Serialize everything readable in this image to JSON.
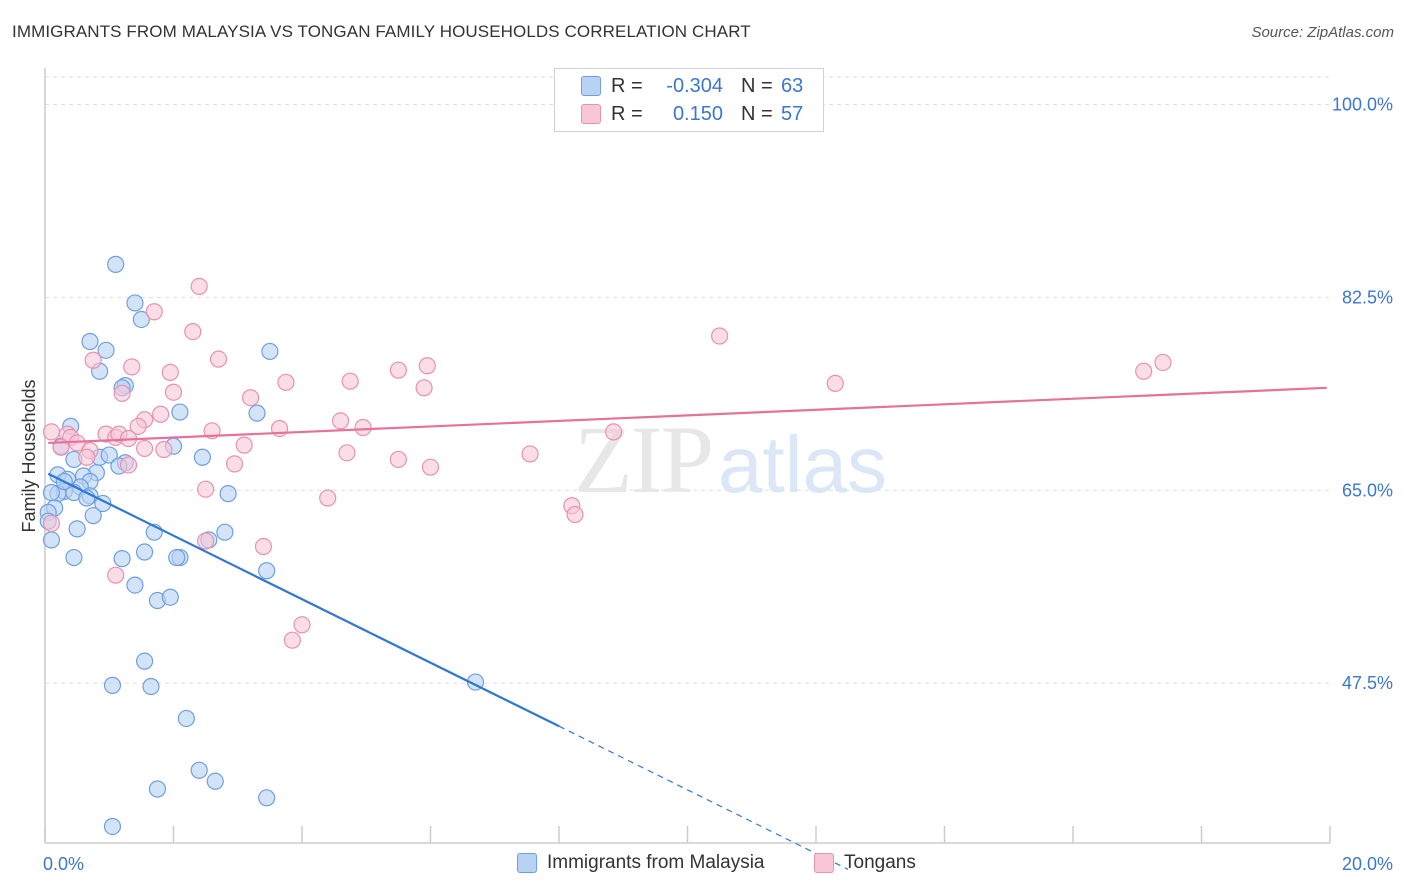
{
  "title": "IMMIGRANTS FROM MALAYSIA VS TONGAN FAMILY HOUSEHOLDS CORRELATION CHART",
  "source": "Source: ZipAtlas.com",
  "colors": {
    "blue_fill": "#b8d2f4",
    "blue_stroke": "#6f9fe0",
    "blue_line": "#2e78d2",
    "pink_fill": "#f7c6d7",
    "pink_stroke": "#e892b0",
    "pink_line": "#e5729b",
    "tick_text": "#3b77d1",
    "grid": "#dddddd"
  },
  "legend_top": {
    "rows": [
      {
        "r_label": "R =",
        "r_value": "-0.304",
        "n_label": "N =",
        "n_value": "63",
        "series": "blue"
      },
      {
        "r_label": "R =",
        "r_value": "0.150",
        "n_label": "N =",
        "n_value": "57",
        "series": "pink"
      }
    ]
  },
  "legend_bottom": {
    "items": [
      {
        "label": "Immigrants from Malaysia",
        "series": "blue"
      },
      {
        "label": "Tongans",
        "series": "pink"
      }
    ]
  },
  "chart_data": {
    "type": "scatter",
    "ylabel": "Family Households",
    "xlabel": "",
    "xlim": [
      0,
      20
    ],
    "ylim": [
      33,
      102.5
    ],
    "x_tick_labels": [
      {
        "value": 0,
        "label": "0.0%"
      },
      {
        "value": 20,
        "label": "20.0%"
      }
    ],
    "y_tick_labels": [
      {
        "value": 100,
        "label": "100.0%"
      },
      {
        "value": 82.5,
        "label": "82.5%"
      },
      {
        "value": 65,
        "label": "65.0%"
      },
      {
        "value": 47.5,
        "label": "47.5%"
      }
    ],
    "watermark": {
      "part1": "ZIP",
      "part2": "atlas"
    },
    "series": [
      {
        "name": "Immigrants from Malaysia",
        "color": "blue",
        "trend": {
          "x0": 0.05,
          "y0": 66.5,
          "x_solid_end": 8.0,
          "y_solid_end": 43.6,
          "x_dash_end": 12.5,
          "y_dash_end": 30.6
        },
        "points": [
          [
            1.1,
            85.5
          ],
          [
            1.4,
            82.0
          ],
          [
            1.5,
            80.5
          ],
          [
            0.7,
            78.5
          ],
          [
            0.95,
            77.7
          ],
          [
            3.5,
            77.6
          ],
          [
            0.85,
            75.8
          ],
          [
            1.25,
            74.5
          ],
          [
            1.2,
            74.3
          ],
          [
            2.1,
            72.1
          ],
          [
            3.3,
            72.0
          ],
          [
            0.4,
            70.8
          ],
          [
            0.25,
            69.0
          ],
          [
            2.0,
            69.0
          ],
          [
            0.45,
            67.8
          ],
          [
            0.85,
            68.0
          ],
          [
            1.0,
            68.2
          ],
          [
            1.25,
            67.5
          ],
          [
            1.15,
            67.2
          ],
          [
            2.45,
            68.0
          ],
          [
            0.2,
            66.4
          ],
          [
            0.8,
            66.6
          ],
          [
            0.6,
            66.3
          ],
          [
            0.35,
            66.0
          ],
          [
            0.7,
            65.8
          ],
          [
            0.55,
            65.3
          ],
          [
            0.3,
            64.9
          ],
          [
            0.2,
            64.7
          ],
          [
            0.45,
            64.8
          ],
          [
            0.7,
            64.5
          ],
          [
            0.65,
            64.3
          ],
          [
            0.9,
            63.8
          ],
          [
            2.85,
            64.7
          ],
          [
            0.15,
            63.4
          ],
          [
            0.05,
            63.0
          ],
          [
            0.75,
            62.7
          ],
          [
            0.05,
            62.2
          ],
          [
            0.5,
            61.5
          ],
          [
            1.7,
            61.2
          ],
          [
            2.8,
            61.2
          ],
          [
            2.55,
            60.5
          ],
          [
            0.1,
            60.5
          ],
          [
            1.55,
            59.4
          ],
          [
            0.45,
            58.9
          ],
          [
            1.2,
            58.8
          ],
          [
            2.1,
            58.9
          ],
          [
            3.45,
            57.7
          ],
          [
            1.4,
            56.4
          ],
          [
            1.75,
            55.0
          ],
          [
            1.95,
            55.3
          ],
          [
            1.55,
            49.5
          ],
          [
            6.7,
            47.6
          ],
          [
            1.05,
            47.3
          ],
          [
            1.65,
            47.2
          ],
          [
            2.2,
            44.3
          ],
          [
            2.4,
            39.6
          ],
          [
            2.65,
            38.6
          ],
          [
            1.75,
            37.9
          ],
          [
            3.45,
            37.1
          ],
          [
            1.05,
            34.5
          ],
          [
            0.1,
            64.8
          ],
          [
            0.3,
            65.8
          ],
          [
            2.05,
            58.9
          ]
        ]
      },
      {
        "name": "Tongans",
        "color": "pink",
        "trend": {
          "x0": 0.05,
          "y0": 69.3,
          "x1": 19.95,
          "y1": 74.3
        },
        "points": [
          [
            2.4,
            83.5
          ],
          [
            1.7,
            81.2
          ],
          [
            2.3,
            79.4
          ],
          [
            10.5,
            79.0
          ],
          [
            0.75,
            76.8
          ],
          [
            2.7,
            76.9
          ],
          [
            1.35,
            76.2
          ],
          [
            5.5,
            75.9
          ],
          [
            5.95,
            76.3
          ],
          [
            17.4,
            76.6
          ],
          [
            17.1,
            75.8
          ],
          [
            1.95,
            75.7
          ],
          [
            3.75,
            74.8
          ],
          [
            4.75,
            74.9
          ],
          [
            12.3,
            74.7
          ],
          [
            5.9,
            74.3
          ],
          [
            1.2,
            73.8
          ],
          [
            2.0,
            73.9
          ],
          [
            3.2,
            73.4
          ],
          [
            1.8,
            71.9
          ],
          [
            1.55,
            71.4
          ],
          [
            4.6,
            71.3
          ],
          [
            1.45,
            70.8
          ],
          [
            2.6,
            70.4
          ],
          [
            3.65,
            70.6
          ],
          [
            4.95,
            70.7
          ],
          [
            8.85,
            70.3
          ],
          [
            0.1,
            70.3
          ],
          [
            0.35,
            70.1
          ],
          [
            0.4,
            69.8
          ],
          [
            0.95,
            70.1
          ],
          [
            1.1,
            69.8
          ],
          [
            1.15,
            70.1
          ],
          [
            1.3,
            69.7
          ],
          [
            0.5,
            69.3
          ],
          [
            0.25,
            68.9
          ],
          [
            0.7,
            68.6
          ],
          [
            1.55,
            68.8
          ],
          [
            1.85,
            68.7
          ],
          [
            3.1,
            69.1
          ],
          [
            0.65,
            68.0
          ],
          [
            4.7,
            68.4
          ],
          [
            7.55,
            68.3
          ],
          [
            5.5,
            67.8
          ],
          [
            1.3,
            67.3
          ],
          [
            2.95,
            67.4
          ],
          [
            6.0,
            67.1
          ],
          [
            2.5,
            65.1
          ],
          [
            4.4,
            64.3
          ],
          [
            8.2,
            63.6
          ],
          [
            8.25,
            62.8
          ],
          [
            0.1,
            62.0
          ],
          [
            3.4,
            59.9
          ],
          [
            2.5,
            60.4
          ],
          [
            1.1,
            57.3
          ],
          [
            4.0,
            52.8
          ],
          [
            3.85,
            51.4
          ]
        ]
      }
    ]
  }
}
